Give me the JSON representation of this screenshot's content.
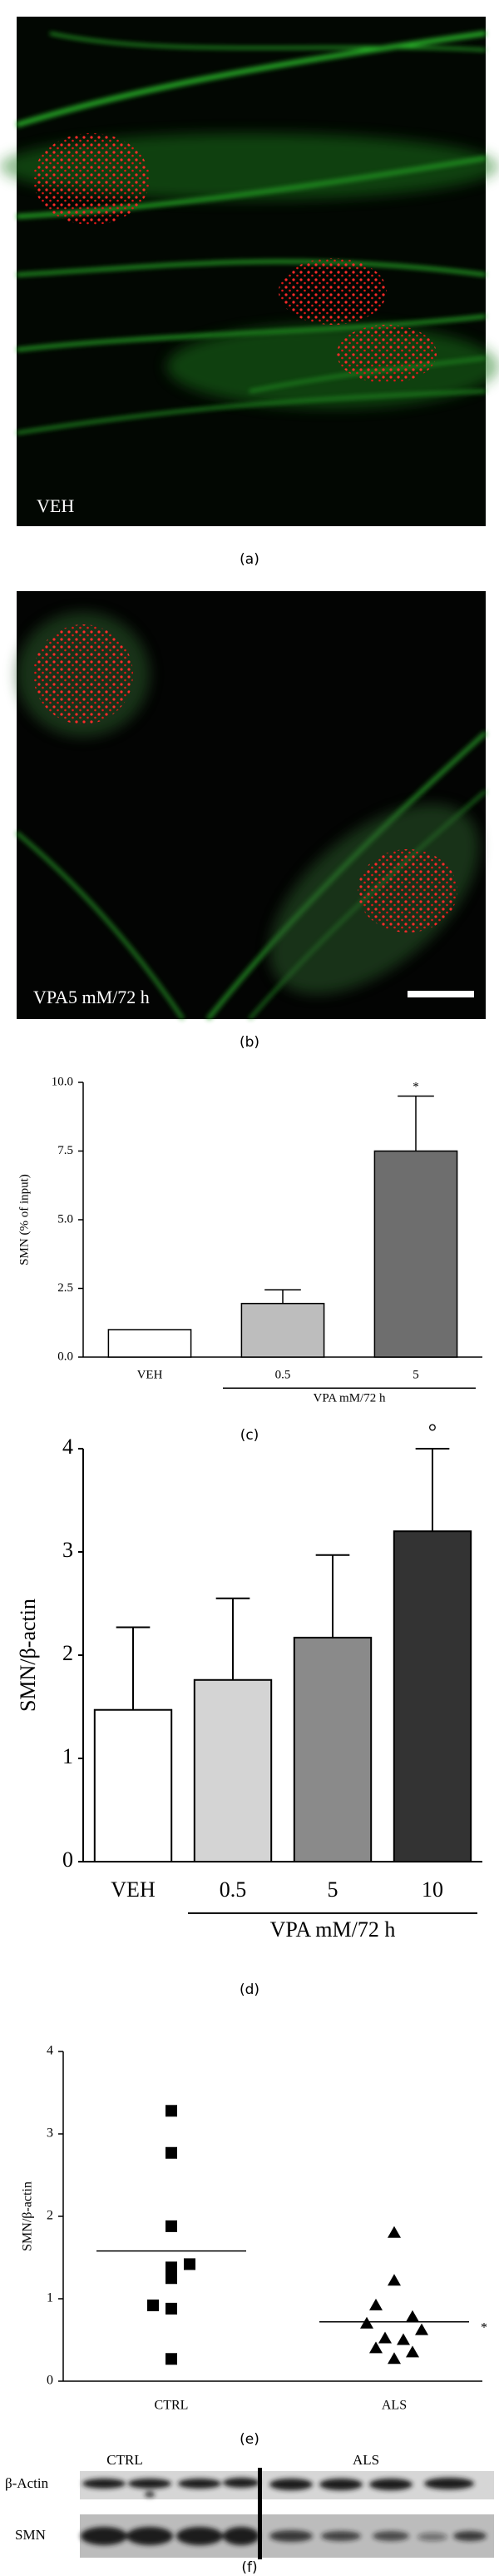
{
  "figure_a": {
    "overlay_label": "VEH",
    "caption": "(a)"
  },
  "figure_b": {
    "overlay_label": "VPA5 mM/72 h",
    "caption": "(b)"
  },
  "chart_data": [
    {
      "type": "bar",
      "caption": "(c)",
      "ylabel": "SMN (% of input)",
      "xlabel": "VPA mM/72 h",
      "categories": [
        "VEH",
        "0.5",
        "5"
      ],
      "values": [
        1.0,
        1.95,
        7.5
      ],
      "errors": [
        null,
        0.5,
        2.0
      ],
      "colors": [
        "#ffffff",
        "#bdbdbd",
        "#6e6e6e"
      ],
      "bar_annotations": [
        null,
        null,
        "*"
      ],
      "ylim": [
        0,
        10
      ],
      "yticks": [
        {
          "value": 0,
          "label": "0.0"
        },
        {
          "value": 2.5,
          "label": "2.5"
        },
        {
          "value": 5,
          "label": "5.0"
        },
        {
          "value": 7.5,
          "label": "7.5"
        },
        {
          "value": 10,
          "label": "10.0"
        }
      ]
    },
    {
      "type": "bar",
      "caption": "(d)",
      "ylabel": "SMN/β-actin",
      "xlabel": "VPA mM/72 h",
      "categories": [
        "VEH",
        "0.5",
        "5",
        "10"
      ],
      "values": [
        1.47,
        1.76,
        2.17,
        3.2
      ],
      "errors": [
        0.8,
        0.79,
        0.8,
        0.8
      ],
      "colors": [
        "#ffffff",
        "#d4d4d4",
        "#8a8a8a",
        "#333333"
      ],
      "bar_annotations": [
        null,
        null,
        null,
        "°"
      ],
      "ylim": [
        0,
        4
      ],
      "yticks": [
        0,
        1,
        2,
        3,
        4
      ]
    },
    {
      "type": "scatter",
      "caption": "(e)",
      "ylabel": "SMN/β-actin",
      "categories": [
        "CTRL",
        "ALS"
      ],
      "series": [
        {
          "marker": "square",
          "values": [
            3.28,
            2.77,
            1.88,
            1.42,
            1.38,
            1.25,
            0.92,
            0.88,
            0.27
          ],
          "mean": 1.58,
          "annotation": null
        },
        {
          "marker": "triangle",
          "values": [
            1.8,
            1.22,
            0.92,
            0.78,
            0.7,
            0.62,
            0.52,
            0.5,
            0.4,
            0.35,
            0.27
          ],
          "mean": 0.72,
          "annotation": "*"
        }
      ],
      "ylim": [
        0,
        4
      ],
      "yticks": [
        0,
        1,
        2,
        3,
        4
      ]
    }
  ],
  "figure_f": {
    "group_labels": [
      "CTRL",
      "ALS"
    ],
    "row_labels": [
      "β-Actin",
      "SMN"
    ],
    "caption": "(f)"
  }
}
